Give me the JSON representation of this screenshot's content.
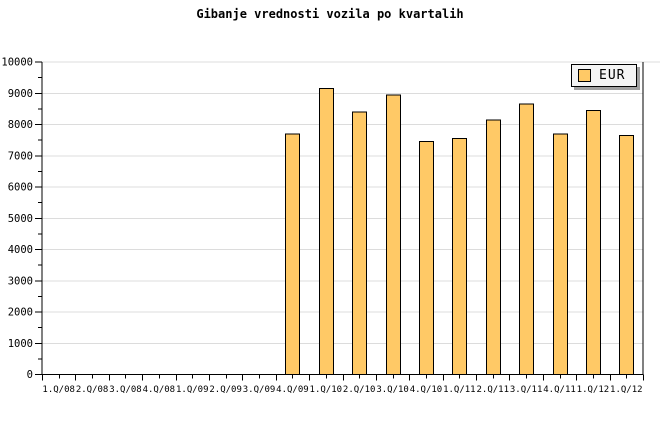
{
  "chart_data": {
    "type": "bar",
    "title": "Gibanje vrednosti vozila po kvartalih",
    "categories": [
      "1.Q/08",
      "2.Q/08",
      "3.Q/08",
      "4.Q/08",
      "1.Q/09",
      "2.Q/09",
      "3.Q/09",
      "4.Q/09",
      "1.Q/10",
      "2.Q/10",
      "3.Q/10",
      "4.Q/10",
      "1.Q/11",
      "2.Q/11",
      "3.Q/11",
      "4.Q/11",
      "1.Q/12",
      "1.Q/12"
    ],
    "series": [
      {
        "name": "EUR",
        "values": [
          null,
          null,
          null,
          null,
          null,
          null,
          null,
          7700,
          9150,
          8400,
          8950,
          7450,
          7550,
          8150,
          8650,
          7700,
          8450,
          7650
        ]
      }
    ],
    "xlabel": "",
    "ylabel": "",
    "ylim": [
      0,
      10000
    ],
    "yticks": [
      0,
      1000,
      2000,
      3000,
      4000,
      5000,
      6000,
      7000,
      8000,
      9000,
      10000
    ],
    "ytick_step": 1000,
    "ytick_minor_step": 500,
    "grid": true,
    "legend_position": "top-right",
    "colors": {
      "bar_fill": "#FFC966",
      "bar_border": "#000000",
      "grid": "#DCDCDC",
      "axis": "#000000",
      "text": "#000000",
      "legend_bg": "#F4F4F4",
      "legend_shadow": "#A0A0A0"
    }
  }
}
